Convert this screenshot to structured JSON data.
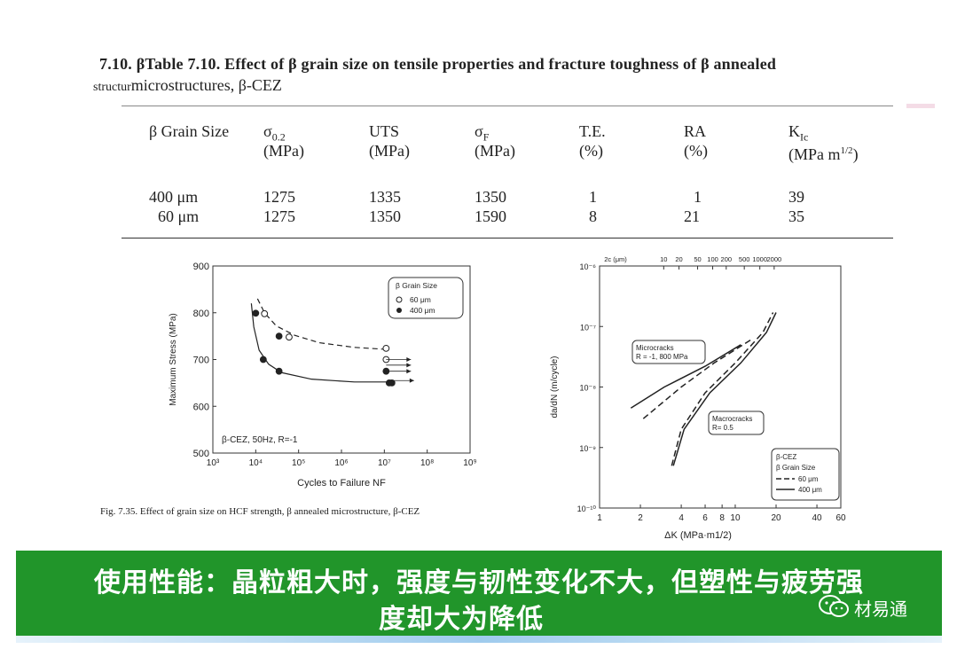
{
  "header": {
    "line1_prefix": "7.10. β",
    "line1": "Table 7.10. Effect of β grain size on tensile properties and fracture toughness of β annealed",
    "line2_prefix": "structur",
    "line2": "microstructures, β-CEZ"
  },
  "table": {
    "headers": [
      {
        "name": "β Grain Size",
        "unit": ""
      },
      {
        "name": "σ0.2",
        "unit": "(MPa)"
      },
      {
        "name": "UTS",
        "unit": "(MPa)"
      },
      {
        "name": "σF",
        "unit": "(MPa)"
      },
      {
        "name": "T.E.",
        "unit": "(%)"
      },
      {
        "name": "RA",
        "unit": "(%)"
      },
      {
        "name": "KIc",
        "unit": "(MPa m1/2)"
      }
    ],
    "rows": [
      [
        "400 μm",
        "1275",
        "1335",
        "1350",
        "1",
        "1",
        "39"
      ],
      [
        "60 μm",
        "1275",
        "1350",
        "1590",
        "8",
        "21",
        "35"
      ]
    ]
  },
  "chart_data": [
    {
      "type": "scatter",
      "xlabel": "Cycles to Failure NF",
      "ylabel": "Maximum Stress (MPa)",
      "xscale": "log",
      "xlim": [
        1000,
        1000000000
      ],
      "ylim": [
        500,
        900
      ],
      "xticks": [
        "10³",
        "10⁴",
        "10⁵",
        "10⁶",
        "10⁷",
        "10⁸",
        "10⁹"
      ],
      "yticks": [
        "500",
        "600",
        "700",
        "800",
        "900"
      ],
      "legend_title": "β Grain Size",
      "legend_position": "top-right",
      "annotation": "β-CEZ, 50Hz, R=-1",
      "series": [
        {
          "name": "60 μm",
          "marker": "open-circle",
          "line": "dashed",
          "points": [
            [
              16000,
              798
            ],
            [
              60000,
              748
            ],
            [
              11000000,
              724
            ],
            [
              11000000,
              700
            ]
          ]
        },
        {
          "name": "400 μm",
          "marker": "filled-circle",
          "line": "solid",
          "points": [
            [
              10000,
              799
            ],
            [
              15000,
              700
            ],
            [
              35000,
              675
            ],
            [
              35000,
              750
            ],
            [
              11000000,
              675
            ],
            [
              13000000,
              650
            ],
            [
              15000000,
              650
            ]
          ]
        }
      ],
      "runouts": [
        [
          11000000,
          700
        ],
        [
          11000000,
          688
        ],
        [
          11000000,
          675
        ],
        [
          13000000,
          655
        ]
      ]
    },
    {
      "type": "line",
      "xlabel": "ΔK (MPa·m1/2)",
      "ylabel": "da/dN (m/cycle)",
      "top_axis_label": "2c (μm)",
      "top_ticks": [
        "10",
        "20",
        "50",
        "100",
        "200",
        "500",
        "1000",
        "2000"
      ],
      "xscale": "log",
      "yscale": "log",
      "xlim": [
        1,
        60
      ],
      "ylim": [
        1e-10,
        1e-06
      ],
      "xticks": [
        "1",
        "2",
        "4",
        "6",
        "8",
        "10",
        "20",
        "40",
        "60"
      ],
      "yticks": [
        "10⁻⁶",
        "10⁻⁷",
        "10⁻⁸",
        "10⁻⁹",
        "10⁻¹⁰"
      ],
      "annotations": [
        "Microcracks R = -1, 800 MPa",
        "Macrocracks R= 0.5"
      ],
      "legend_title": "β-CEZ β Grain Size",
      "legend_position": "bottom-right",
      "series": [
        {
          "name": "Microcracks 60 μm",
          "line": "dashed",
          "points": [
            [
              2.1,
              3e-09
            ],
            [
              4,
              1e-08
            ],
            [
              7,
              2.5e-08
            ],
            [
              13,
              6e-08
            ]
          ]
        },
        {
          "name": "Microcracks 400 μm",
          "line": "solid",
          "points": [
            [
              1.7,
              4.5e-09
            ],
            [
              3,
              1e-08
            ],
            [
              6,
              2.2e-08
            ],
            [
              11,
              5e-08
            ]
          ]
        },
        {
          "name": "60 μm",
          "line": "dashed",
          "points": [
            [
              3.4,
              5e-10
            ],
            [
              4,
              2e-09
            ],
            [
              6,
              8e-09
            ],
            [
              10,
              2.5e-08
            ],
            [
              16,
              8e-08
            ],
            [
              19,
              1.7e-07
            ]
          ]
        },
        {
          "name": "400 μm",
          "line": "solid",
          "points": [
            [
              3.5,
              5e-10
            ],
            [
              4.2,
              2e-09
            ],
            [
              6.5,
              8e-09
            ],
            [
              11,
              2.5e-08
            ],
            [
              17,
              8e-08
            ],
            [
              20,
              1.7e-07
            ]
          ]
        }
      ]
    }
  ],
  "captions": {
    "fig735": "Fig. 7.35. Effect of grain size on HCF strength, β annealed microstructure, β-CEZ"
  },
  "banner": {
    "line1": "使用性能：晶粒粗大时，强度与韧性变化不大，但塑性与疲劳强",
    "line2": "度却大为降低",
    "logo": "材易通"
  },
  "colors": {
    "banner": "#21952a",
    "text": "#222222"
  }
}
